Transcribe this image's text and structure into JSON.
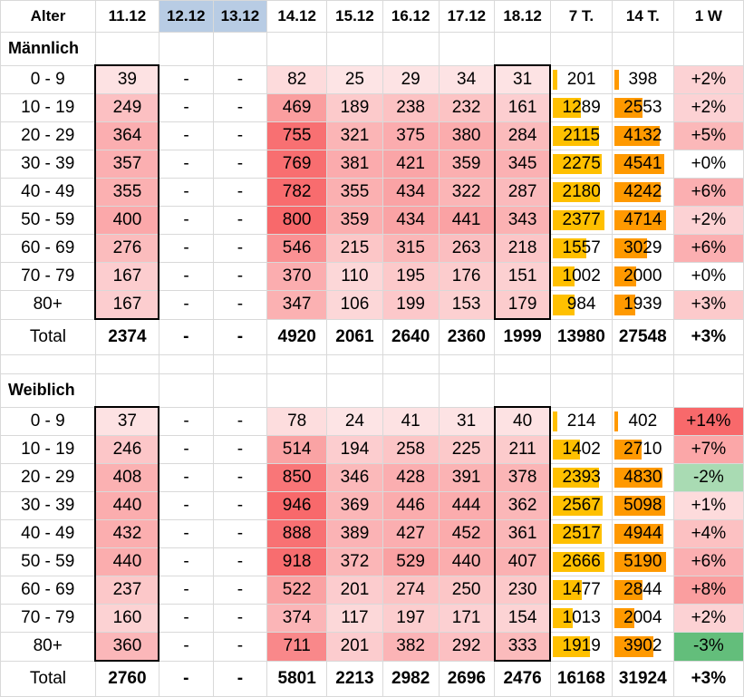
{
  "colors": {
    "heat_max": "#f8696b",
    "heat_min": "#fde4e5",
    "bar7": "#ffc000",
    "bar14": "#ff9900",
    "up_strong": "#f8696b",
    "down": "#63be7b"
  },
  "headers": [
    "Alter",
    "11.12",
    "12.12",
    "13.12",
    "14.12",
    "15.12",
    "16.12",
    "17.12",
    "18.12",
    "7 T.",
    "14 T.",
    "1 W"
  ],
  "sections": [
    {
      "title": "Männlich",
      "rows": [
        {
          "label": "0 - 9",
          "cells": [
            "39",
            "-",
            "-",
            "82",
            "25",
            "29",
            "34",
            "31"
          ],
          "t7": "201",
          "t14": "398",
          "w1": "+2%"
        },
        {
          "label": "10 - 19",
          "cells": [
            "249",
            "-",
            "-",
            "469",
            "189",
            "238",
            "232",
            "161"
          ],
          "t7": "1289",
          "t14": "2553",
          "w1": "+2%"
        },
        {
          "label": "20 - 29",
          "cells": [
            "364",
            "-",
            "-",
            "755",
            "321",
            "375",
            "380",
            "284"
          ],
          "t7": "2115",
          "t14": "4132",
          "w1": "+5%"
        },
        {
          "label": "30 - 39",
          "cells": [
            "357",
            "-",
            "-",
            "769",
            "381",
            "421",
            "359",
            "345"
          ],
          "t7": "2275",
          "t14": "4541",
          "w1": "+0%"
        },
        {
          "label": "40 - 49",
          "cells": [
            "355",
            "-",
            "-",
            "782",
            "355",
            "434",
            "322",
            "287"
          ],
          "t7": "2180",
          "t14": "4242",
          "w1": "+6%"
        },
        {
          "label": "50 - 59",
          "cells": [
            "400",
            "-",
            "-",
            "800",
            "359",
            "434",
            "441",
            "343"
          ],
          "t7": "2377",
          "t14": "4714",
          "w1": "+2%"
        },
        {
          "label": "60 - 69",
          "cells": [
            "276",
            "-",
            "-",
            "546",
            "215",
            "315",
            "263",
            "218"
          ],
          "t7": "1557",
          "t14": "3029",
          "w1": "+6%"
        },
        {
          "label": "70 - 79",
          "cells": [
            "167",
            "-",
            "-",
            "370",
            "110",
            "195",
            "176",
            "151"
          ],
          "t7": "1002",
          "t14": "2000",
          "w1": "+0%"
        },
        {
          "label": "80+",
          "cells": [
            "167",
            "-",
            "-",
            "347",
            "106",
            "199",
            "153",
            "179"
          ],
          "t7": "984",
          "t14": "1939",
          "w1": "+3%"
        }
      ],
      "total": {
        "label": "Total",
        "cells": [
          "2374",
          "-",
          "-",
          "4920",
          "2061",
          "2640",
          "2360",
          "1999"
        ],
        "t7": "13980",
        "t14": "27548",
        "w1": "+3%"
      }
    },
    {
      "title": "Weiblich",
      "rows": [
        {
          "label": "0 - 9",
          "cells": [
            "37",
            "-",
            "-",
            "78",
            "24",
            "41",
            "31",
            "40"
          ],
          "t7": "214",
          "t14": "402",
          "w1": "+14%"
        },
        {
          "label": "10 - 19",
          "cells": [
            "246",
            "-",
            "-",
            "514",
            "194",
            "258",
            "225",
            "211"
          ],
          "t7": "1402",
          "t14": "2710",
          "w1": "+7%"
        },
        {
          "label": "20 - 29",
          "cells": [
            "408",
            "-",
            "-",
            "850",
            "346",
            "428",
            "391",
            "378"
          ],
          "t7": "2393",
          "t14": "4830",
          "w1": "-2%"
        },
        {
          "label": "30 - 39",
          "cells": [
            "440",
            "-",
            "-",
            "946",
            "369",
            "446",
            "444",
            "362"
          ],
          "t7": "2567",
          "t14": "5098",
          "w1": "+1%"
        },
        {
          "label": "40 - 49",
          "cells": [
            "432",
            "-",
            "-",
            "888",
            "389",
            "427",
            "452",
            "361"
          ],
          "t7": "2517",
          "t14": "4944",
          "w1": "+4%"
        },
        {
          "label": "50 - 59",
          "cells": [
            "440",
            "-",
            "-",
            "918",
            "372",
            "529",
            "440",
            "407"
          ],
          "t7": "2666",
          "t14": "5190",
          "w1": "+6%"
        },
        {
          "label": "60 - 69",
          "cells": [
            "237",
            "-",
            "-",
            "522",
            "201",
            "274",
            "250",
            "230"
          ],
          "t7": "1477",
          "t14": "2844",
          "w1": "+8%"
        },
        {
          "label": "70 - 79",
          "cells": [
            "160",
            "-",
            "-",
            "374",
            "117",
            "197",
            "171",
            "154"
          ],
          "t7": "1013",
          "t14": "2004",
          "w1": "+2%"
        },
        {
          "label": "80+",
          "cells": [
            "360",
            "-",
            "-",
            "711",
            "201",
            "382",
            "292",
            "333"
          ],
          "t7": "1919",
          "t14": "3902",
          "w1": "-3%"
        }
      ],
      "total": {
        "label": "Total",
        "cells": [
          "2760",
          "-",
          "-",
          "5801",
          "2213",
          "2982",
          "2696",
          "2476"
        ],
        "t7": "16168",
        "t14": "31924",
        "w1": "+3%"
      }
    }
  ]
}
